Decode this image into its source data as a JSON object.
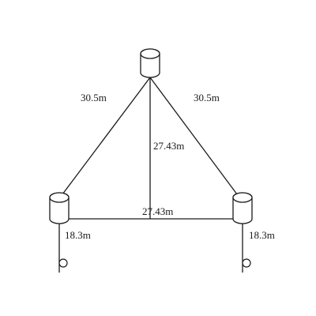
{
  "diagram": {
    "labels": {
      "left_side": "30.5m",
      "right_side": "30.5m",
      "vertical": "27.43m",
      "base": "27.43m",
      "left_cable": "18.3m",
      "right_cable": "18.3m"
    },
    "nodes": [
      "top-cylinder",
      "left-cylinder",
      "right-cylinder"
    ]
  }
}
